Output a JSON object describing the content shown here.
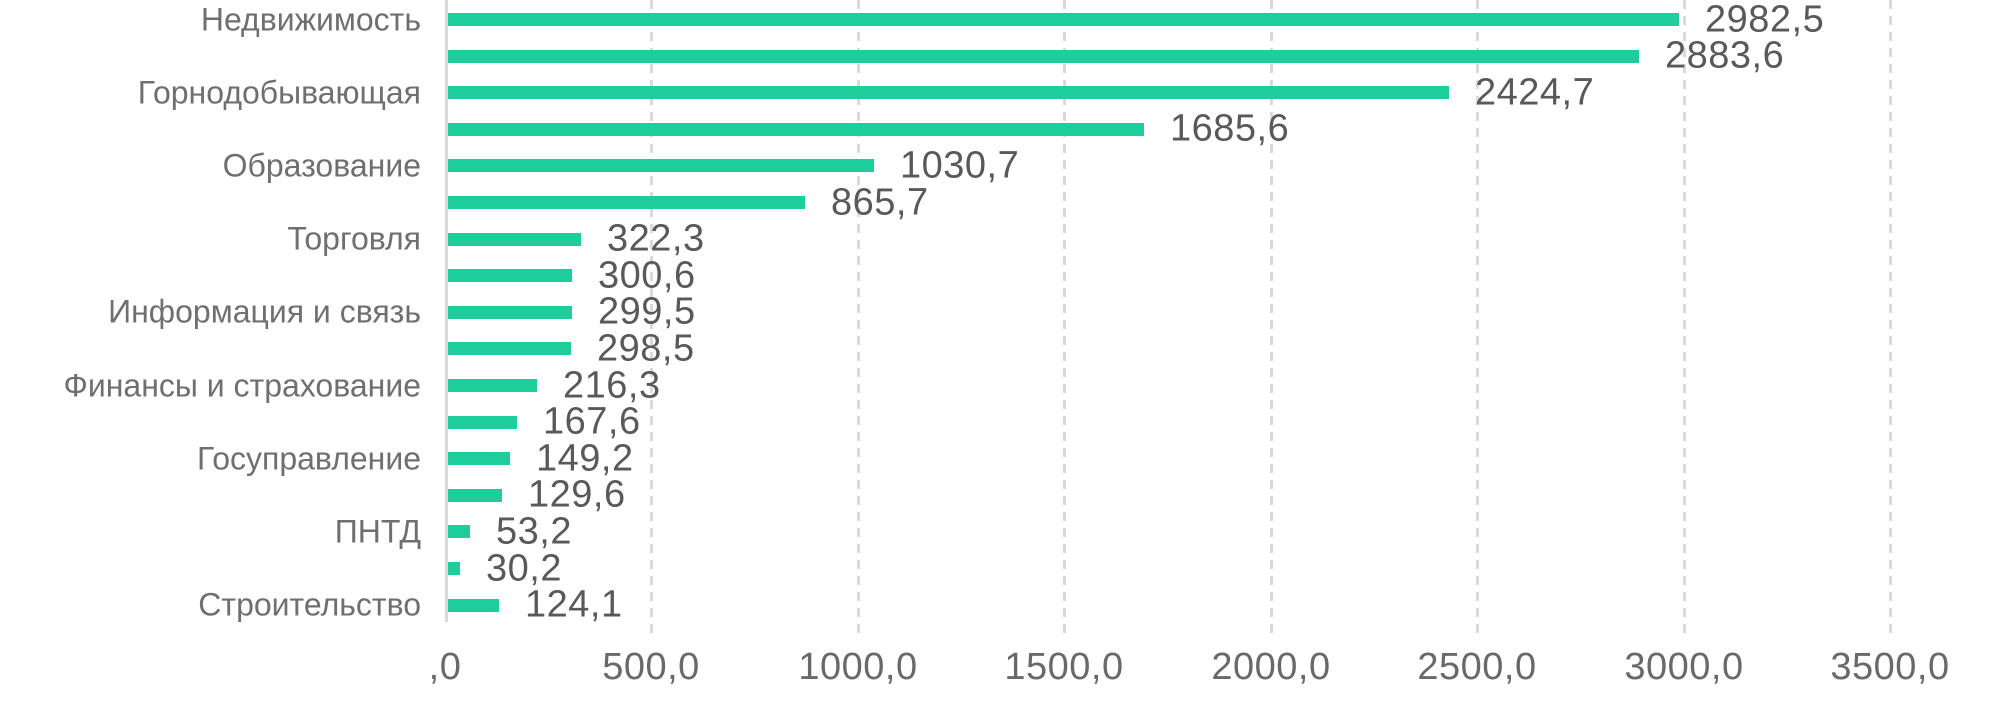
{
  "chart_data": {
    "type": "bar",
    "orientation": "horizontal",
    "title": "",
    "xlabel": "",
    "ylabel": "",
    "categories": [
      "Недвижимость",
      "",
      "Горнодобывающая",
      "",
      "Образование",
      "",
      "Торговля",
      "",
      "Информация и связь",
      "",
      "Финансы и страхование",
      "",
      "Госуправление",
      "",
      "ПНТД",
      "",
      "Строительство"
    ],
    "values": [
      2982.5,
      2883.6,
      2424.7,
      1685.6,
      1030.7,
      865.7,
      322.3,
      300.6,
      299.5,
      298.5,
      216.3,
      167.6,
      149.2,
      129.6,
      53.2,
      30.2,
      124.1
    ],
    "value_labels": [
      "2982,5",
      "2883,6",
      "2424,7",
      "1685,6",
      "1030,7",
      "865,7",
      "322,3",
      "300,6",
      "299,5",
      "298,5",
      "216,3",
      "167,6",
      "149,2",
      "129,6",
      "53,2",
      "30,2",
      "124,1"
    ],
    "xlim": [
      0,
      3500
    ],
    "x_tick_values": [
      0,
      500,
      1000,
      1500,
      2000,
      2500,
      3000,
      3500
    ],
    "x_tick_labels": [
      ",0",
      "500,0",
      "1000,0",
      "1500,0",
      "2000,0",
      "2500,0",
      "3000,0",
      "3500,0"
    ],
    "grid": "vertical-dashed",
    "legend": "none",
    "colors": {
      "bar": "#1DCE9C",
      "gridline": "#DADADA",
      "axis_line": "#D9D9D9",
      "category_label": "#6F6F6F",
      "value_label": "#595959",
      "tick_label": "#696969",
      "background": "#FFFFFF"
    }
  }
}
